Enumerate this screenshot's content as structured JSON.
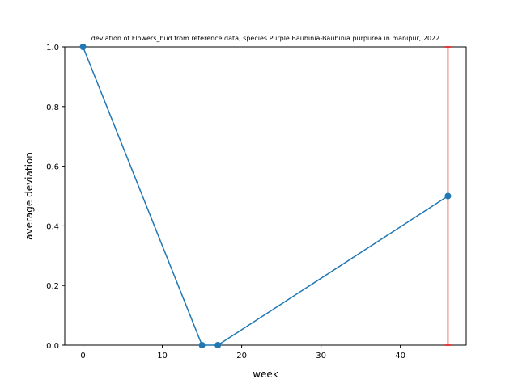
{
  "chart_data": {
    "type": "line",
    "title": "deviation of Flowers_bud from reference data, species Purple Bauhinia-Bauhinia purpurea in manipur, 2022",
    "xlabel": "week",
    "ylabel": "average deviation",
    "xlim": [
      -2.3,
      48.3
    ],
    "ylim": [
      0,
      1.0
    ],
    "x_ticks": [
      0,
      10,
      20,
      30,
      40
    ],
    "y_ticks": [
      0.0,
      0.2,
      0.4,
      0.6,
      0.8,
      1.0
    ],
    "x_tick_labels": [
      "0",
      "10",
      "20",
      "30",
      "40"
    ],
    "y_tick_labels": [
      "0.0",
      "0.2",
      "0.4",
      "0.6",
      "0.8",
      "1.0"
    ],
    "grid": false,
    "series": [
      {
        "x": [
          0,
          15,
          17,
          46
        ],
        "y": [
          1.0,
          0.0,
          0.0,
          0.5
        ],
        "color": "#1f77b4",
        "marker": "circle"
      }
    ],
    "error_bars": [
      {
        "x": 46,
        "y_low": 0.0,
        "y_high": 1.0,
        "color": "#e00000"
      }
    ]
  }
}
